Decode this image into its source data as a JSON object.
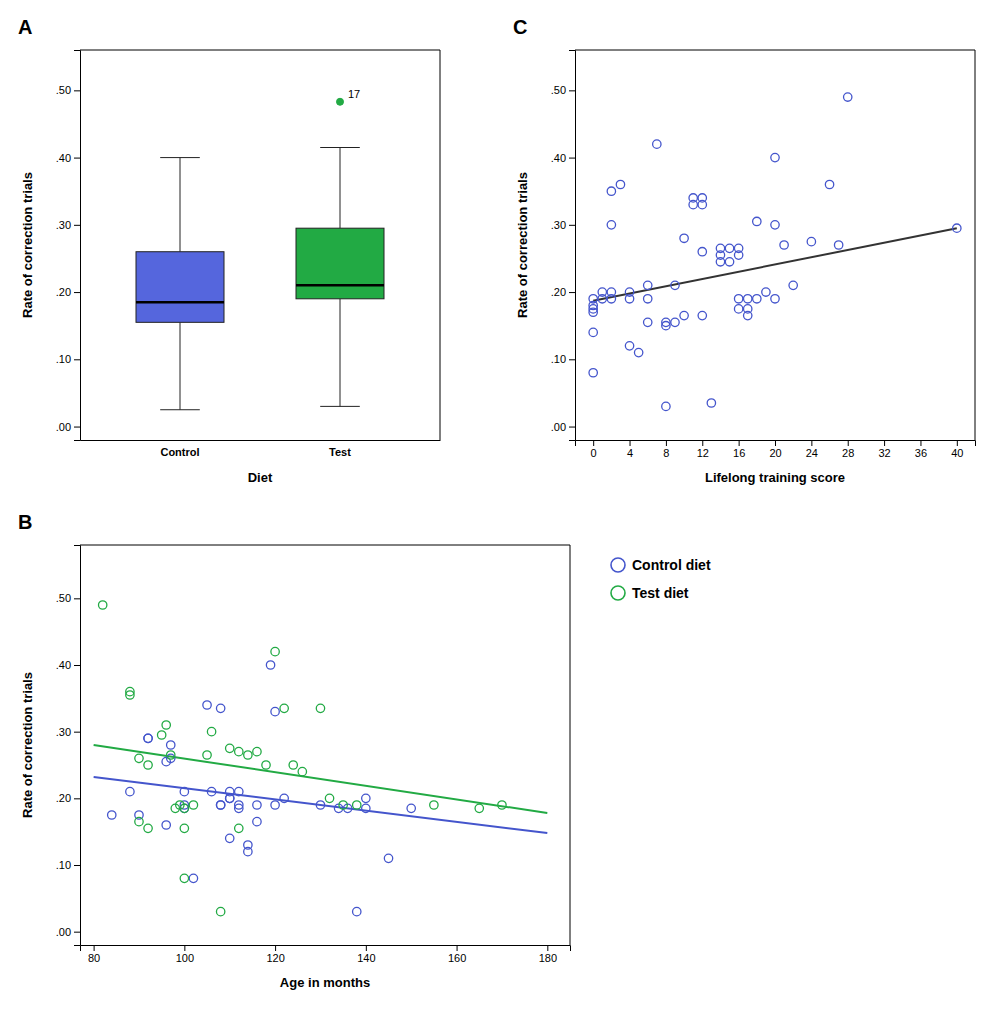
{
  "chart_data": [
    {
      "type": "box",
      "title": "A",
      "xlabel": "Diet",
      "ylabel": "Rate of correction trials",
      "categories": [
        "Control",
        "Test"
      ],
      "boxes": [
        {
          "q1": 0.155,
          "median": 0.185,
          "q3": 0.26,
          "whisker_low": 0.025,
          "whisker_high": 0.4,
          "color": "#5566dd"
        },
        {
          "q1": 0.19,
          "median": 0.21,
          "q3": 0.295,
          "whisker_low": 0.03,
          "whisker_high": 0.415,
          "color": "#22aa44",
          "outliers": [
            0.483
          ],
          "outlier_labels": [
            "17"
          ]
        }
      ],
      "ylim": [
        -0.02,
        0.56
      ],
      "yticks": [
        {
          "value": 0.0,
          "label": ".00"
        },
        {
          "value": 0.1,
          "label": ".10"
        },
        {
          "value": 0.2,
          "label": ".20"
        },
        {
          "value": 0.3,
          "label": ".30"
        },
        {
          "value": 0.4,
          "label": ".40"
        },
        {
          "value": 0.5,
          "label": ".50"
        }
      ]
    },
    {
      "type": "scatter",
      "title": "C",
      "xlabel": "Lifelong training score",
      "ylabel": "Rate of correction trials",
      "series": [
        {
          "type": "scatter",
          "marker": "circle",
          "color": "#4455cc",
          "x": [
            0,
            0,
            0,
            0,
            0,
            0,
            1,
            1,
            2,
            2,
            2,
            2,
            3,
            4,
            4,
            4,
            5,
            6,
            6,
            6,
            7,
            8,
            8,
            8,
            9,
            9,
            10,
            10,
            11,
            11,
            12,
            12,
            12,
            12,
            13,
            14,
            14,
            14,
            15,
            15,
            16,
            16,
            16,
            16,
            17,
            17,
            17,
            18,
            18,
            19,
            20,
            20,
            20,
            21,
            22,
            24,
            26,
            27,
            28,
            40
          ],
          "values": [
            0.19,
            0.18,
            0.17,
            0.175,
            0.14,
            0.08,
            0.2,
            0.19,
            0.35,
            0.3,
            0.2,
            0.19,
            0.36,
            0.2,
            0.19,
            0.12,
            0.11,
            0.21,
            0.19,
            0.155,
            0.42,
            0.155,
            0.15,
            0.03,
            0.21,
            0.155,
            0.28,
            0.165,
            0.34,
            0.33,
            0.34,
            0.33,
            0.26,
            0.165,
            0.035,
            0.265,
            0.255,
            0.245,
            0.265,
            0.245,
            0.265,
            0.255,
            0.19,
            0.175,
            0.19,
            0.175,
            0.165,
            0.305,
            0.19,
            0.2,
            0.4,
            0.3,
            0.19,
            0.27,
            0.21,
            0.275,
            0.36,
            0.27,
            0.49,
            0.295
          ]
        },
        {
          "type": "line",
          "color": "#333333",
          "x": [
            0,
            40
          ],
          "values": [
            0.187,
            0.295
          ]
        }
      ],
      "xlim": [
        -2,
        42
      ],
      "xticks": [
        0,
        4,
        8,
        12,
        16,
        20,
        24,
        28,
        32,
        36,
        40
      ],
      "ylim": [
        -0.02,
        0.56
      ],
      "yticks": [
        {
          "value": 0.0,
          "label": ".00"
        },
        {
          "value": 0.1,
          "label": ".10"
        },
        {
          "value": 0.2,
          "label": ".20"
        },
        {
          "value": 0.3,
          "label": ".30"
        },
        {
          "value": 0.4,
          "label": ".40"
        },
        {
          "value": 0.5,
          "label": ".50"
        }
      ]
    },
    {
      "type": "scatter",
      "title": "B",
      "xlabel": "Age in months",
      "ylabel": "Rate of correction trials",
      "legend": "right",
      "series": [
        {
          "name": "Control diet",
          "type": "scatter",
          "marker": "circle",
          "color": "#4455cc",
          "x": [
            84,
            88,
            90,
            92,
            92,
            96,
            96,
            97,
            97,
            100,
            100,
            100,
            102,
            105,
            106,
            108,
            108,
            108,
            110,
            110,
            110,
            110,
            112,
            112,
            112,
            114,
            114,
            116,
            116,
            119,
            120,
            120,
            122,
            130,
            134,
            136,
            138,
            140,
            140,
            145,
            150
          ],
          "values": [
            0.175,
            0.21,
            0.175,
            0.29,
            0.29,
            0.16,
            0.255,
            0.26,
            0.28,
            0.21,
            0.185,
            0.19,
            0.08,
            0.34,
            0.21,
            0.335,
            0.19,
            0.19,
            0.2,
            0.2,
            0.21,
            0.14,
            0.185,
            0.21,
            0.19,
            0.12,
            0.13,
            0.19,
            0.165,
            0.4,
            0.33,
            0.19,
            0.2,
            0.19,
            0.185,
            0.185,
            0.03,
            0.2,
            0.185,
            0.11,
            0.185
          ]
        },
        {
          "name": "Test diet",
          "type": "scatter",
          "marker": "circle",
          "color": "#22aa44",
          "x": [
            82,
            88,
            88,
            90,
            90,
            92,
            92,
            95,
            96,
            97,
            98,
            99,
            100,
            100,
            100,
            102,
            105,
            106,
            108,
            110,
            112,
            112,
            114,
            116,
            118,
            120,
            122,
            124,
            126,
            130,
            132,
            135,
            138,
            155,
            165,
            170
          ],
          "values": [
            0.49,
            0.36,
            0.355,
            0.26,
            0.165,
            0.25,
            0.155,
            0.295,
            0.31,
            0.265,
            0.185,
            0.19,
            0.185,
            0.155,
            0.08,
            0.19,
            0.265,
            0.3,
            0.03,
            0.275,
            0.27,
            0.155,
            0.265,
            0.27,
            0.25,
            0.42,
            0.335,
            0.25,
            0.24,
            0.335,
            0.2,
            0.19,
            0.19,
            0.19,
            0.185,
            0.19
          ]
        },
        {
          "type": "line",
          "color": "#4455cc",
          "x": [
            80,
            180
          ],
          "values": [
            0.232,
            0.148
          ]
        },
        {
          "type": "line",
          "color": "#22aa44",
          "x": [
            80,
            180
          ],
          "values": [
            0.28,
            0.178
          ]
        }
      ],
      "xlim": [
        77,
        185
      ],
      "xticks": [
        80,
        100,
        120,
        140,
        160,
        180
      ],
      "ylim": [
        -0.02,
        0.58
      ],
      "yticks": [
        {
          "value": 0.0,
          "label": ".00"
        },
        {
          "value": 0.1,
          "label": ".10"
        },
        {
          "value": 0.2,
          "label": ".20"
        },
        {
          "value": 0.3,
          "label": ".30"
        },
        {
          "value": 0.4,
          "label": ".40"
        },
        {
          "value": 0.5,
          "label": ".50"
        }
      ]
    }
  ]
}
